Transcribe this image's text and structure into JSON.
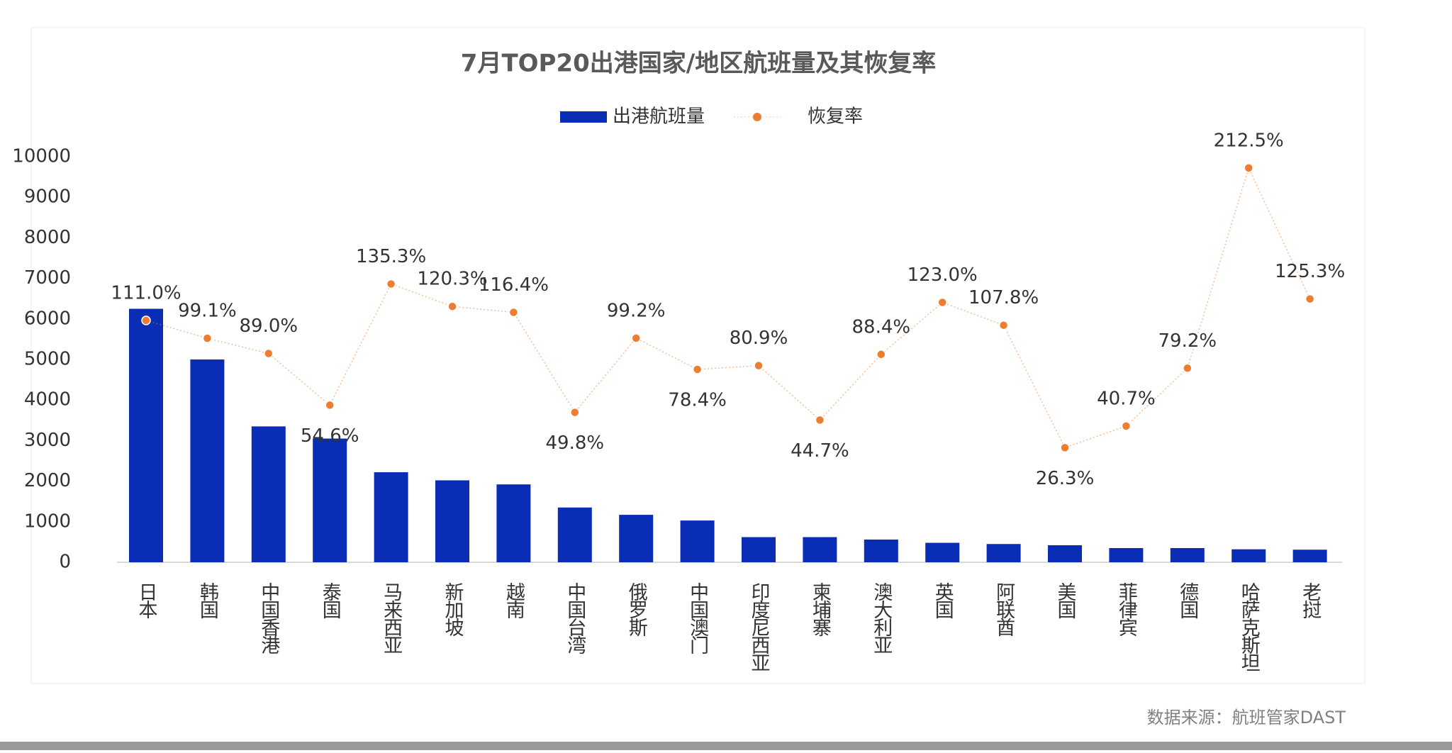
{
  "chart_data": {
    "type": "bar-line",
    "title": "7月TOP20出港国家/地区航班量及其恢复率",
    "source": "数据来源：航班管家DAST",
    "categories": [
      "日本",
      "韩国",
      "中国香港",
      "泰国",
      "马来西亚",
      "新加坡",
      "越南",
      "中国台湾",
      "俄罗斯",
      "中国澳门",
      "印度尼西亚",
      "柬埔寨",
      "澳大利亚",
      "英国",
      "阿联酋",
      "美国",
      "菲律宾",
      "德国",
      "哈萨克斯坦",
      "老挝"
    ],
    "series": [
      {
        "name": "出港航班量",
        "type": "bar",
        "color": "#0a2db5",
        "values": [
          6250,
          5000,
          3350,
          3050,
          2220,
          2020,
          1920,
          1350,
          1170,
          1030,
          620,
          620,
          560,
          480,
          450,
          420,
          350,
          350,
          320,
          310
        ]
      },
      {
        "name": "恢复率",
        "type": "line",
        "axis": "y2",
        "color": "#ed7d31",
        "values": [
          111.0,
          99.1,
          89.0,
          54.6,
          135.3,
          120.3,
          116.4,
          49.8,
          99.2,
          78.4,
          80.9,
          44.7,
          88.4,
          123.0,
          107.8,
          26.3,
          40.7,
          79.2,
          212.5,
          125.3
        ],
        "value_labels": [
          "111.0%",
          "99.1%",
          "89.0%",
          "54.6%",
          "135.3%",
          "120.3%",
          "116.4%",
          "49.8%",
          "99.2%",
          "78.4%",
          "80.9%",
          "44.7%",
          "88.4%",
          "123.0%",
          "107.8%",
          "26.3%",
          "40.7%",
          "79.2%",
          "212.5%",
          "125.3%"
        ]
      }
    ],
    "ylim": [
      0,
      10000
    ],
    "yticks": [
      0,
      1000,
      2000,
      3000,
      4000,
      5000,
      6000,
      7000,
      8000,
      9000,
      10000
    ],
    "y2lim": [
      -50,
      220
    ],
    "grid": false,
    "legend": "top"
  }
}
